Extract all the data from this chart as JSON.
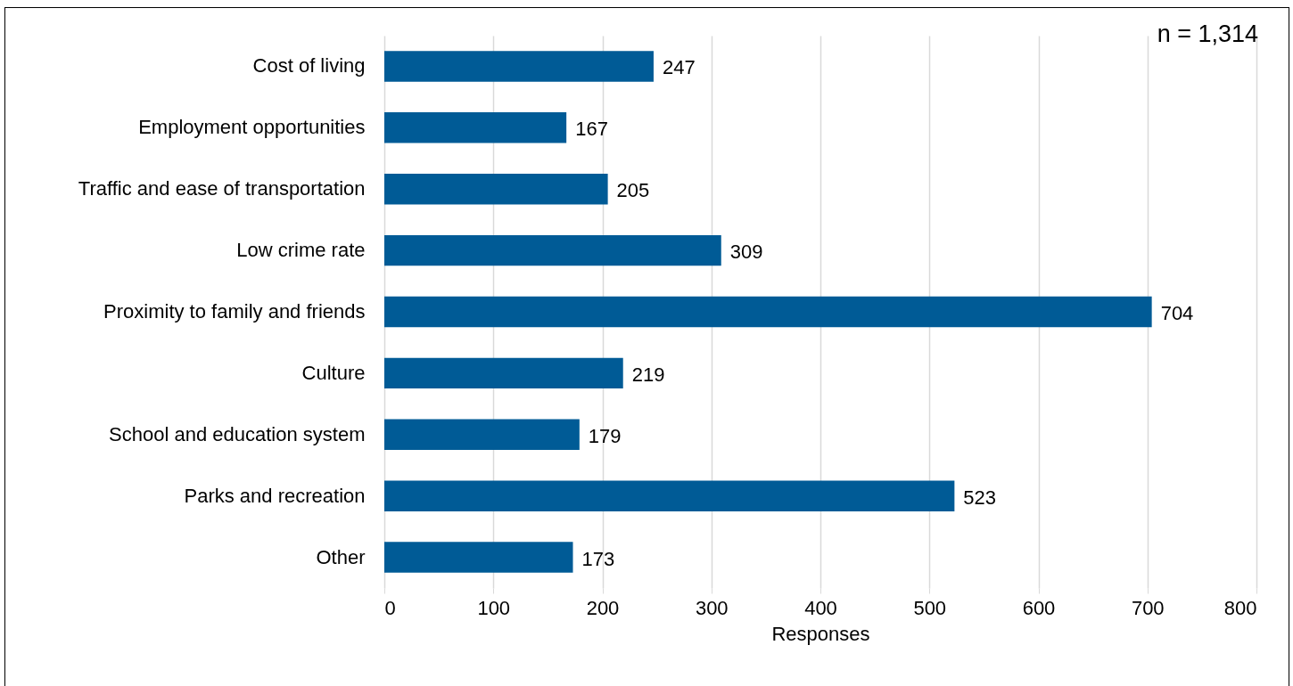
{
  "chart_data": {
    "type": "bar",
    "orientation": "horizontal",
    "xlabel": "Responses",
    "categories": [
      "Cost of living",
      "Employment opportunities",
      "Traffic and ease of transportation",
      "Low crime rate",
      "Proximity to family and friends",
      "Culture",
      "School and education system",
      "Parks and recreation",
      "Other"
    ],
    "values": [
      247,
      167,
      205,
      309,
      704,
      219,
      179,
      523,
      173
    ],
    "color": "#005b96",
    "xlim": [
      0,
      800
    ],
    "xticks": [
      0,
      100,
      200,
      300,
      400,
      500,
      600,
      700,
      800
    ],
    "grid": "x",
    "data_labels": true,
    "annotations": [
      "n = 1,314"
    ]
  }
}
